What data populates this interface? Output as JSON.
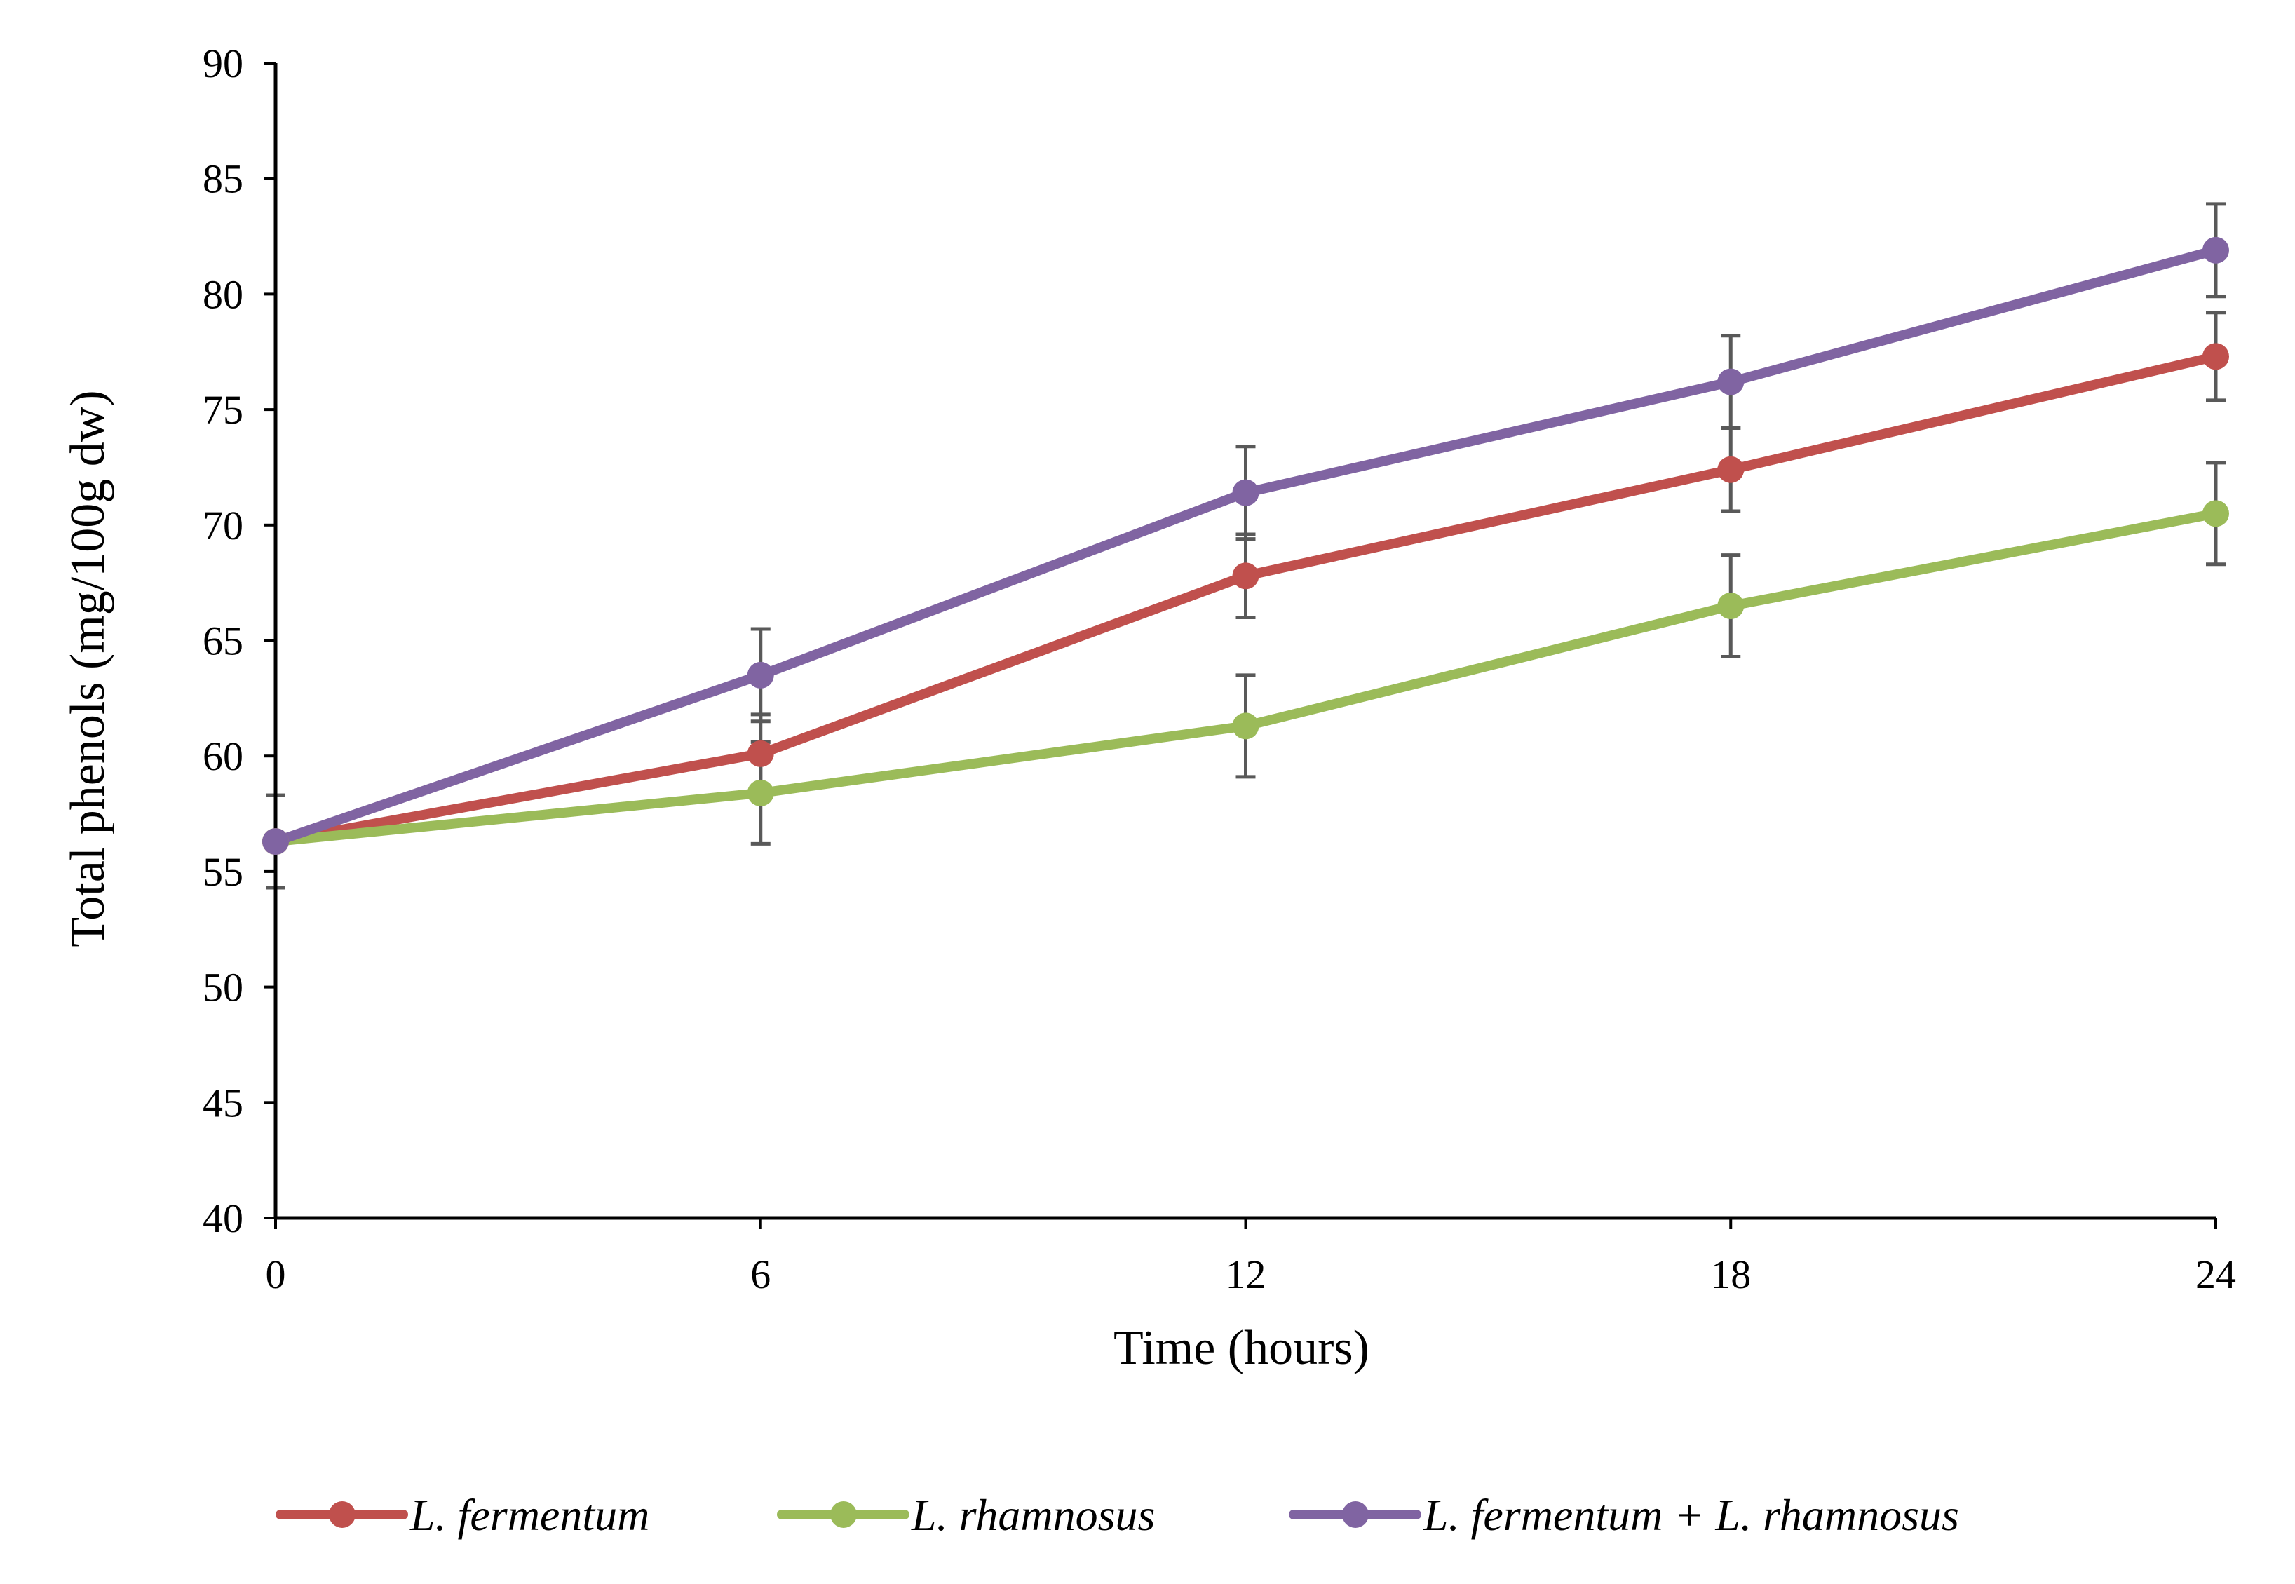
{
  "chart_data": {
    "type": "line",
    "title": "",
    "xlabel": "Time (hours)",
    "ylabel": "Total phenols (mg/100g dw)",
    "x": [
      0,
      6,
      12,
      18,
      24
    ],
    "xlim": [
      0,
      24
    ],
    "ylim": [
      40,
      90
    ],
    "xticks": [
      "0",
      "6",
      "12",
      "18",
      "24"
    ],
    "yticks": [
      "40",
      "45",
      "50",
      "55",
      "60",
      "65",
      "70",
      "75",
      "80",
      "85",
      "90"
    ],
    "grid": false,
    "legend_position": "bottom",
    "series": [
      {
        "name": "L. fermentum",
        "color": "#c0504d",
        "values": [
          56.3,
          60.1,
          67.8,
          72.4,
          77.3
        ],
        "errors": [
          2.0,
          1.7,
          1.8,
          1.8,
          1.9
        ]
      },
      {
        "name": "L. rhamnosus",
        "color": "#9bbb59",
        "values": [
          56.3,
          58.4,
          61.3,
          66.5,
          70.5
        ],
        "errors": [
          2.0,
          2.2,
          2.2,
          2.2,
          2.2
        ]
      },
      {
        "name": "L. fermentum + L. rhamnosus",
        "color": "#8064a2",
        "values": [
          56.3,
          63.5,
          71.4,
          76.2,
          81.9
        ],
        "errors": [
          2.0,
          2.0,
          2.0,
          2.0,
          2.0
        ]
      }
    ],
    "error_bar_color": "#595959"
  }
}
